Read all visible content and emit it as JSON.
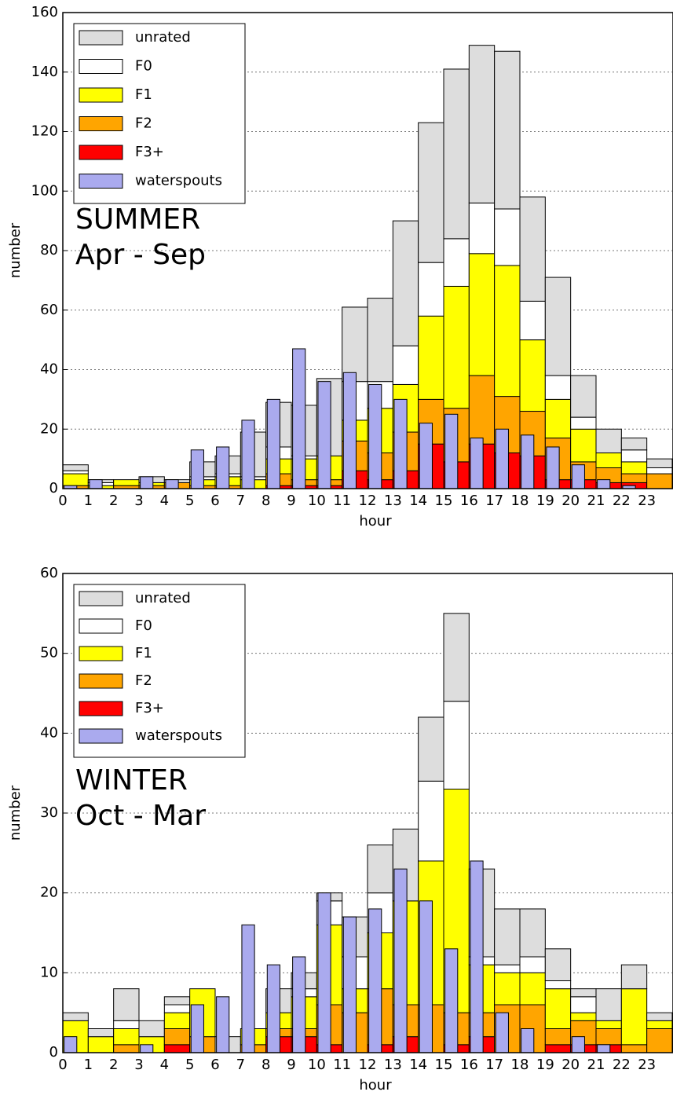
{
  "chart_data": [
    {
      "type": "bar",
      "annotation": [
        "SUMMER",
        "Apr - Sep"
      ],
      "xlabel": "hour",
      "ylabel": "number",
      "x": [
        0,
        1,
        2,
        3,
        4,
        5,
        6,
        7,
        8,
        9,
        10,
        11,
        12,
        13,
        14,
        15,
        16,
        17,
        18,
        19,
        20,
        21,
        22,
        23
      ],
      "xlim": [
        0,
        24
      ],
      "xticks": [
        0,
        1,
        2,
        3,
        4,
        5,
        6,
        7,
        8,
        9,
        10,
        11,
        12,
        13,
        14,
        15,
        16,
        17,
        18,
        19,
        20,
        21,
        22,
        23
      ],
      "ylim": [
        0,
        160
      ],
      "yticks": [
        0,
        20,
        40,
        60,
        80,
        100,
        120,
        140,
        160
      ],
      "grid": true,
      "legend": "upper left",
      "series": [
        {
          "name": "unrated",
          "color": "#dddddd",
          "values": [
            2,
            1,
            0,
            2,
            1,
            5,
            6,
            15,
            15,
            17,
            26,
            25,
            28,
            42,
            47,
            57,
            53,
            53,
            35,
            33,
            14,
            8,
            4,
            3
          ]
        },
        {
          "name": "F0",
          "color": "#ffffff",
          "values": [
            1,
            1,
            0,
            0,
            0,
            1,
            1,
            1,
            4,
            1,
            0,
            13,
            9,
            13,
            18,
            16,
            17,
            19,
            13,
            8,
            4,
            0,
            4,
            2
          ]
        },
        {
          "name": "F1",
          "color": "#ffff00",
          "values": [
            4,
            1,
            2,
            1,
            0,
            2,
            3,
            3,
            5,
            7,
            8,
            7,
            15,
            16,
            28,
            41,
            41,
            44,
            24,
            13,
            11,
            5,
            4,
            0
          ]
        },
        {
          "name": "F2",
          "color": "#ffa500",
          "values": [
            1,
            0,
            1,
            1,
            2,
            1,
            1,
            0,
            4,
            2,
            2,
            10,
            9,
            13,
            15,
            18,
            23,
            19,
            15,
            14,
            6,
            5,
            3,
            5
          ]
        },
        {
          "name": "F3+",
          "color": "#ff0000",
          "values": [
            0,
            0,
            0,
            0,
            0,
            0,
            0,
            0,
            1,
            1,
            1,
            6,
            3,
            6,
            15,
            9,
            15,
            12,
            11,
            3,
            3,
            2,
            2,
            0
          ]
        },
        {
          "name": "waterspouts",
          "color": "#aaaaee",
          "stacked": false,
          "values": [
            1,
            3,
            0,
            4,
            3,
            13,
            14,
            23,
            30,
            47,
            36,
            39,
            35,
            30,
            22,
            25,
            17,
            20,
            18,
            14,
            8,
            3,
            1,
            0
          ]
        }
      ]
    },
    {
      "type": "bar",
      "annotation": [
        "WINTER",
        "Oct - Mar"
      ],
      "xlabel": "hour",
      "ylabel": "number",
      "x": [
        0,
        1,
        2,
        3,
        4,
        5,
        6,
        7,
        8,
        9,
        10,
        11,
        12,
        13,
        14,
        15,
        16,
        17,
        18,
        19,
        20,
        21,
        22,
        23
      ],
      "xlim": [
        0,
        24
      ],
      "xticks": [
        0,
        1,
        2,
        3,
        4,
        5,
        6,
        7,
        8,
        9,
        10,
        11,
        12,
        13,
        14,
        15,
        16,
        17,
        18,
        19,
        20,
        21,
        22,
        23
      ],
      "ylim": [
        0,
        60
      ],
      "yticks": [
        0,
        10,
        20,
        30,
        40,
        50,
        60
      ],
      "grid": true,
      "legend": "upper left",
      "series": [
        {
          "name": "unrated",
          "color": "#dddddd",
          "values": [
            1,
            1,
            4,
            2,
            1,
            0,
            2,
            0,
            3,
            2,
            1,
            5,
            6,
            9,
            8,
            11,
            11,
            7,
            6,
            4,
            1,
            4,
            3,
            1
          ]
        },
        {
          "name": "F0",
          "color": "#ffffff",
          "values": [
            0,
            0,
            1,
            0,
            1,
            0,
            0,
            0,
            0,
            1,
            3,
            4,
            5,
            0,
            10,
            11,
            1,
            1,
            2,
            1,
            2,
            0,
            0,
            0
          ]
        },
        {
          "name": "F1",
          "color": "#ffff00",
          "values": [
            4,
            2,
            2,
            2,
            2,
            6,
            0,
            2,
            2,
            4,
            10,
            3,
            7,
            13,
            18,
            28,
            6,
            4,
            4,
            5,
            1,
            1,
            7,
            1
          ]
        },
        {
          "name": "F2",
          "color": "#ffa500",
          "values": [
            0,
            0,
            1,
            0,
            2,
            2,
            0,
            1,
            1,
            1,
            5,
            5,
            7,
            4,
            6,
            4,
            3,
            6,
            6,
            2,
            3,
            2,
            1,
            3
          ]
        },
        {
          "name": "F3+",
          "color": "#ff0000",
          "values": [
            0,
            0,
            0,
            0,
            1,
            0,
            0,
            0,
            2,
            2,
            1,
            0,
            1,
            2,
            0,
            1,
            2,
            0,
            0,
            1,
            1,
            1,
            0,
            0
          ]
        },
        {
          "name": "waterspouts",
          "color": "#aaaaee",
          "stacked": false,
          "values": [
            2,
            0,
            0,
            1,
            0,
            6,
            7,
            16,
            11,
            12,
            20,
            17,
            18,
            23,
            19,
            13,
            24,
            5,
            3,
            0,
            2,
            1,
            0,
            0
          ]
        }
      ]
    }
  ]
}
